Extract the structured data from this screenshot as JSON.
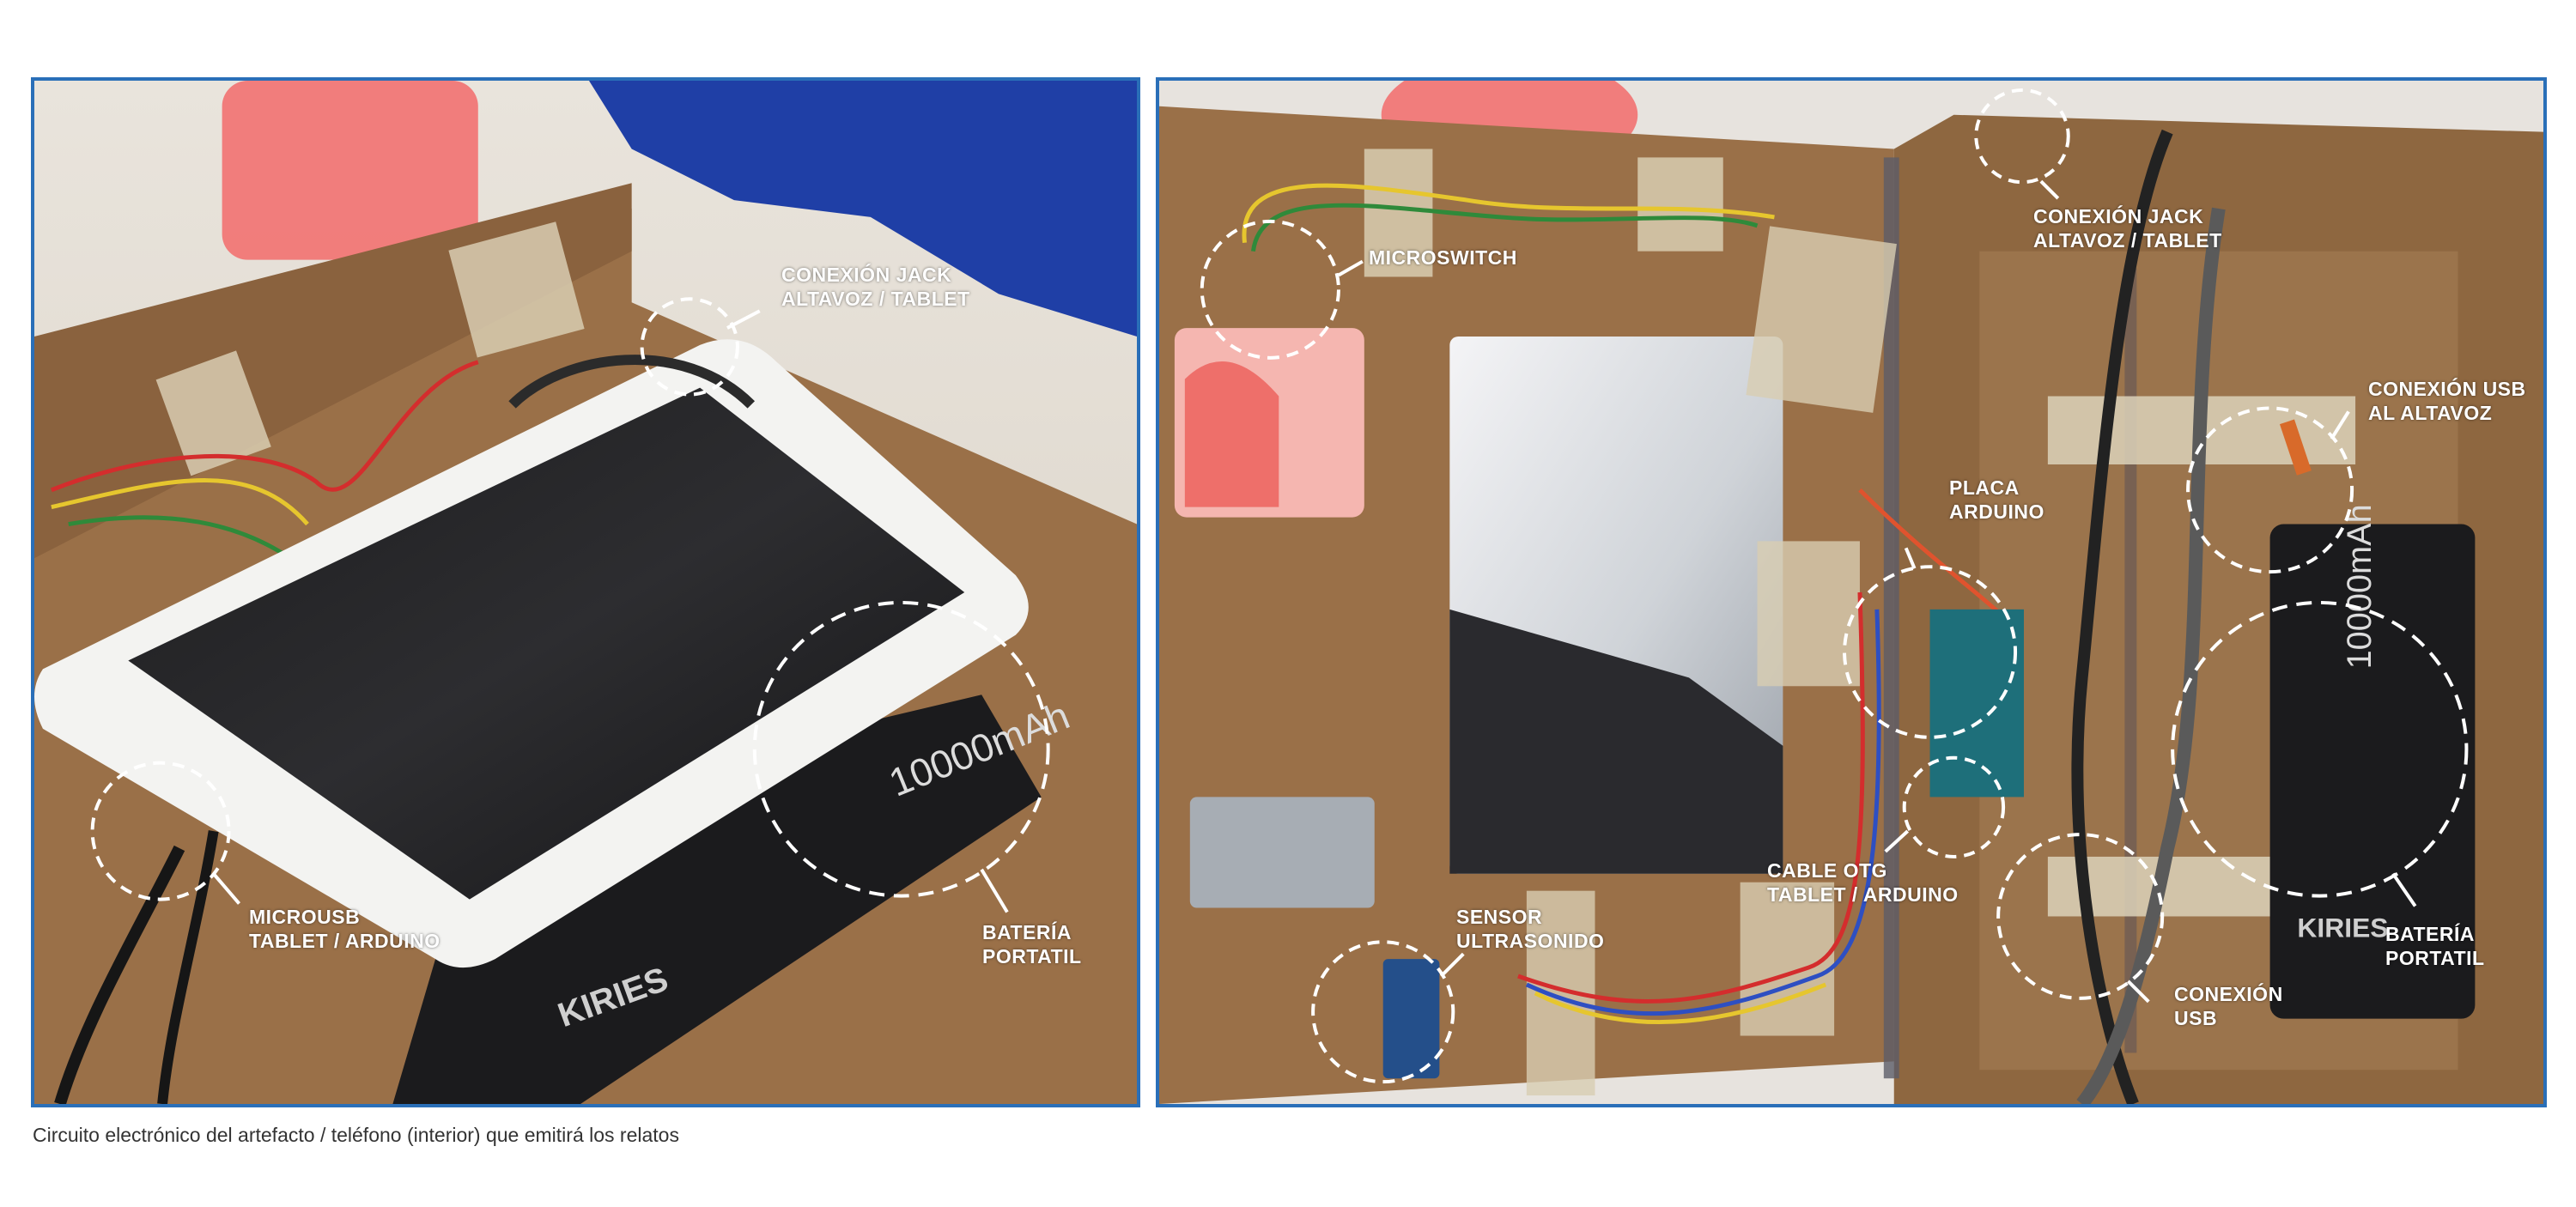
{
  "left_photo": {
    "labels": {
      "jack": [
        "CONEXIÓN JACK",
        "ALTAVOZ / TABLET"
      ],
      "microusb": [
        "MICROUSB",
        "TABLET / ARDUINO"
      ],
      "battery": [
        "BATERÍA",
        "PORTATIL"
      ]
    },
    "battery_print": "10000mAh",
    "brand_print": "KIRIES"
  },
  "right_photo": {
    "labels": {
      "jack": [
        "CONEXIÓN JACK",
        "ALTAVOZ / TABLET"
      ],
      "microswitch": [
        "MICROSWITCH"
      ],
      "usb_speaker": [
        "CONEXIÓN USB",
        "AL ALTAVOZ"
      ],
      "arduino": [
        "PLACA",
        "ARDUINO"
      ],
      "otg": [
        "CABLE OTG",
        "TABLET  / ARDUINO"
      ],
      "sensor": [
        "SENSOR",
        "ULTRASONIDO"
      ],
      "usb": [
        "CONEXIÓN",
        "USB"
      ],
      "battery": [
        "BATERÍA",
        "PORTATIL"
      ]
    },
    "battery_print": "10000mAh",
    "brand_print": "KIRIES"
  },
  "caption": "Circuito electrónico del artefacto / teléfono (interior) que emitirá los relatos",
  "colors": {
    "border": "#2a6fb8",
    "cardboard": "#9a7048",
    "marker": "#ffffff"
  }
}
